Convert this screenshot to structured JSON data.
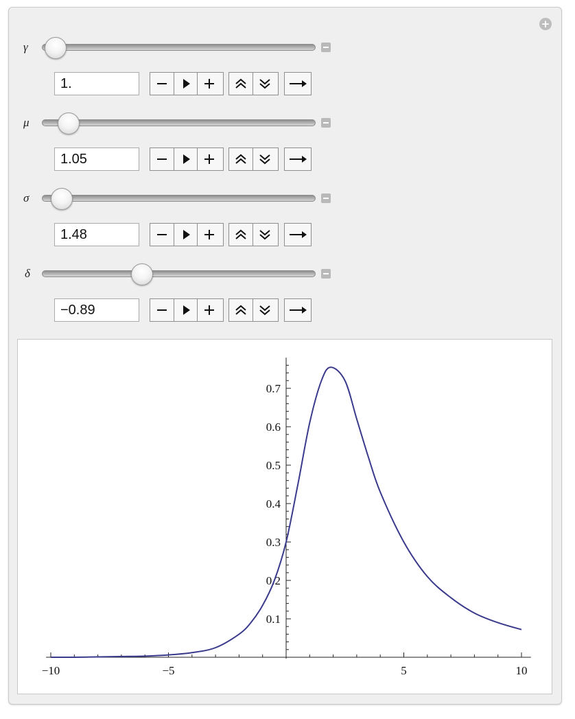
{
  "controls": [
    {
      "symbol": "γ",
      "value": "1.",
      "slider_fraction": 0.0
    },
    {
      "symbol": "μ",
      "value": "1.05",
      "slider_fraction": 0.05
    },
    {
      "symbol": "σ",
      "value": "1.48",
      "slider_fraction": 0.03
    },
    {
      "symbol": "δ",
      "value": "−0.89",
      "slider_fraction": 0.37
    }
  ],
  "icons": {
    "expand": "plus-circle-icon",
    "collapse": "minus-square-icon",
    "decrement": "minus-icon",
    "play": "play-icon",
    "increment": "plus-icon",
    "faster": "double-chevron-up-icon",
    "slower": "double-chevron-down-icon",
    "direction": "arrow-right-icon"
  },
  "colors": {
    "curve": "#3a3a8c",
    "panel": "#efefef"
  },
  "chart_data": {
    "type": "line",
    "title": "",
    "xlabel": "",
    "ylabel": "",
    "xlim": [
      -10,
      10
    ],
    "ylim": [
      0,
      0.78
    ],
    "xticks": [
      "−10",
      "−5",
      "5",
      "10"
    ],
    "yticks": [
      "0.1",
      "0.2",
      "0.3",
      "0.4",
      "0.5",
      "0.6",
      "0.7"
    ],
    "series": [
      {
        "x": [
          -10,
          -9,
          -8,
          -7,
          -6,
          -5,
          -4,
          -3,
          -2,
          -1.5,
          -1,
          -0.5,
          0,
          0.5,
          1,
          1.5,
          1.9,
          2.5,
          3,
          3.5,
          4,
          5,
          6,
          7,
          8,
          9,
          10
        ],
        "y": [
          0.0,
          0.0,
          0.001,
          0.002,
          0.003,
          0.006,
          0.012,
          0.025,
          0.06,
          0.09,
          0.135,
          0.2,
          0.3,
          0.45,
          0.61,
          0.72,
          0.755,
          0.72,
          0.62,
          0.52,
          0.43,
          0.3,
          0.21,
          0.155,
          0.115,
          0.09,
          0.072
        ]
      }
    ]
  }
}
